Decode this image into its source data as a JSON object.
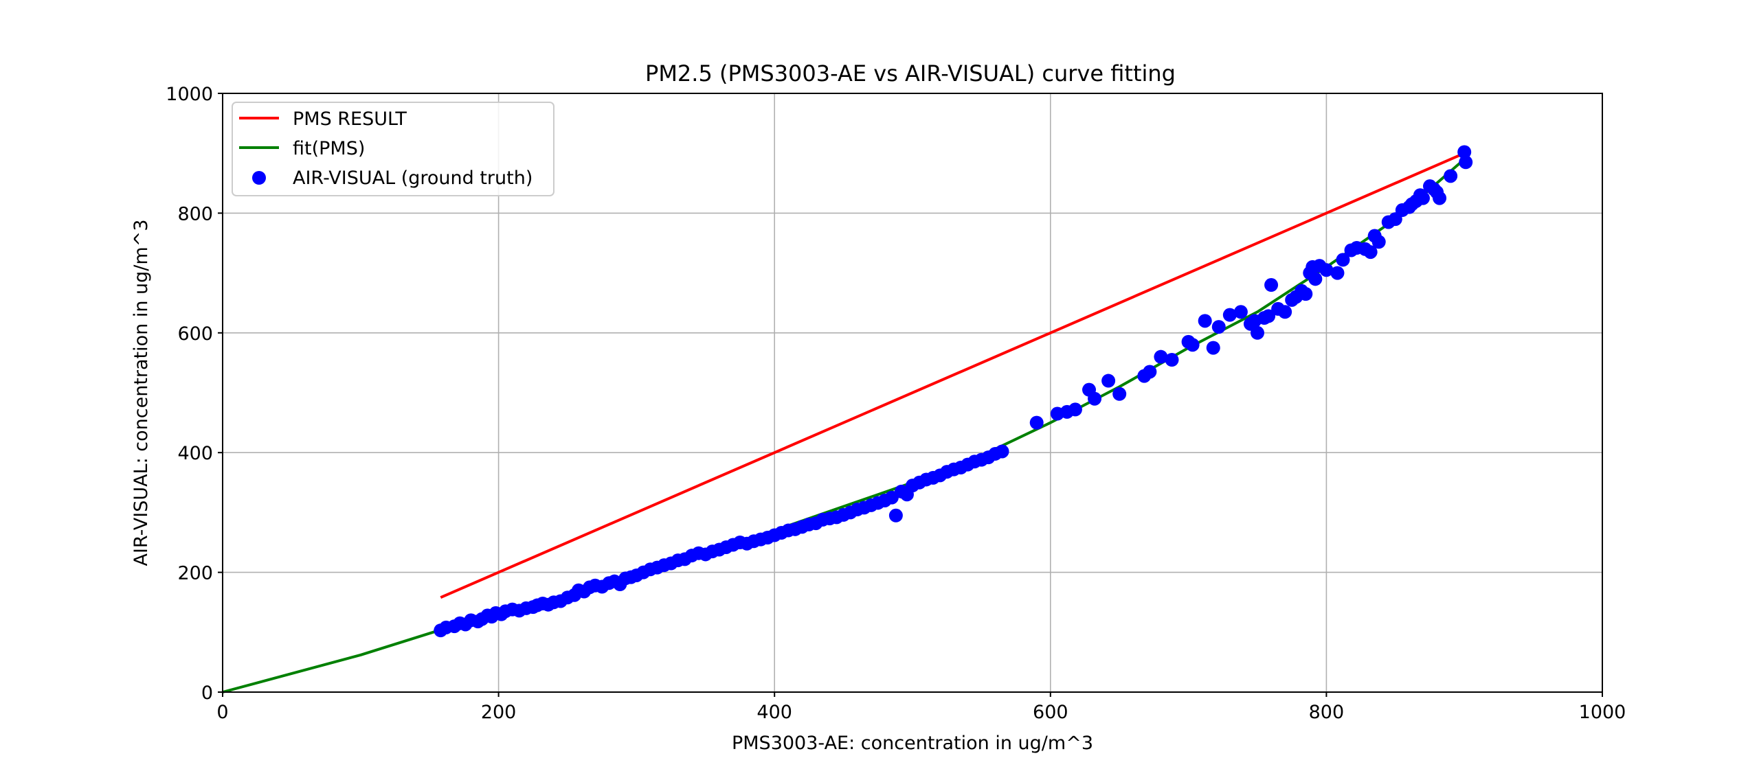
{
  "chart_data": {
    "type": "scatter",
    "title": "PM2.5 (PMS3003-AE vs AIR-VISUAL) curve fitting",
    "xlabel": "PMS3003-AE: concentration in ug/m^3",
    "ylabel": "AIR-VISUAL: concentration in ug/m^3",
    "xlim": [
      0,
      1000
    ],
    "ylim": [
      0,
      1000
    ],
    "x_ticks": [
      0,
      200,
      400,
      600,
      800,
      1000
    ],
    "y_ticks": [
      0,
      200,
      400,
      600,
      800,
      1000
    ],
    "x_tick_labels": [
      "0",
      "200",
      "400",
      "600",
      "800",
      "1000"
    ],
    "y_tick_labels": [
      "0",
      "200",
      "400",
      "600",
      "800",
      "1000"
    ],
    "grid": true,
    "legend_position": "upper-left",
    "series": [
      {
        "name": "PMS RESULT",
        "kind": "line",
        "color": "#ff0000",
        "x": [
          158,
          900
        ],
        "y": [
          158,
          900
        ]
      },
      {
        "name": "fit(PMS)",
        "kind": "line",
        "color": "#008000",
        "x": [
          0,
          100,
          158,
          200,
          250,
          300,
          350,
          400,
          450,
          500,
          550,
          600,
          650,
          700,
          750,
          800,
          850,
          900
        ],
        "y": [
          0,
          62,
          104,
          130,
          163,
          200,
          235,
          270,
          310,
          350,
          395,
          450,
          510,
          575,
          635,
          710,
          790,
          890
        ]
      },
      {
        "name": "AIR-VISUAL (ground truth)",
        "kind": "scatter",
        "color": "#0000ff",
        "x": [
          158,
          162,
          168,
          172,
          176,
          180,
          185,
          188,
          192,
          195,
          198,
          202,
          205,
          210,
          215,
          220,
          225,
          228,
          232,
          236,
          240,
          245,
          250,
          255,
          258,
          262,
          266,
          270,
          275,
          280,
          284,
          288,
          292,
          296,
          300,
          305,
          310,
          315,
          320,
          325,
          330,
          335,
          340,
          345,
          350,
          355,
          360,
          365,
          370,
          375,
          380,
          385,
          390,
          395,
          400,
          405,
          410,
          415,
          420,
          425,
          430,
          435,
          440,
          445,
          450,
          455,
          460,
          465,
          470,
          475,
          480,
          485,
          488,
          492,
          496,
          500,
          505,
          510,
          515,
          520,
          525,
          530,
          535,
          540,
          545,
          550,
          555,
          560,
          565,
          590,
          605,
          612,
          618,
          628,
          632,
          642,
          650,
          668,
          672,
          680,
          688,
          700,
          703,
          712,
          718,
          722,
          730,
          738,
          745,
          748,
          750,
          755,
          758,
          760,
          765,
          770,
          775,
          778,
          782,
          785,
          788,
          790,
          792,
          795,
          800,
          808,
          812,
          818,
          822,
          828,
          832,
          835,
          838,
          845,
          850,
          855,
          860,
          862,
          865,
          868,
          870,
          875,
          878,
          880,
          882,
          890,
          900,
          901
        ],
        "y": [
          103,
          108,
          110,
          115,
          113,
          120,
          118,
          122,
          128,
          126,
          132,
          130,
          135,
          138,
          136,
          140,
          142,
          145,
          148,
          146,
          150,
          152,
          158,
          162,
          170,
          168,
          175,
          178,
          176,
          182,
          185,
          180,
          190,
          192,
          195,
          200,
          205,
          208,
          212,
          215,
          220,
          222,
          228,
          232,
          230,
          235,
          238,
          242,
          246,
          250,
          248,
          252,
          255,
          258,
          262,
          266,
          270,
          272,
          276,
          280,
          282,
          288,
          290,
          292,
          296,
          300,
          305,
          308,
          312,
          316,
          320,
          325,
          295,
          335,
          330,
          345,
          350,
          355,
          358,
          362,
          368,
          372,
          375,
          380,
          385,
          388,
          392,
          398,
          402,
          450,
          465,
          468,
          472,
          505,
          490,
          520,
          498,
          528,
          535,
          560,
          555,
          585,
          580,
          620,
          575,
          610,
          630,
          635,
          615,
          620,
          600,
          625,
          628,
          680,
          640,
          635,
          655,
          660,
          670,
          665,
          700,
          710,
          690,
          712,
          705,
          700,
          722,
          738,
          742,
          740,
          735,
          762,
          752,
          785,
          790,
          805,
          810,
          815,
          820,
          830,
          825,
          845,
          840,
          835,
          825,
          862,
          902,
          885
        ]
      }
    ]
  }
}
